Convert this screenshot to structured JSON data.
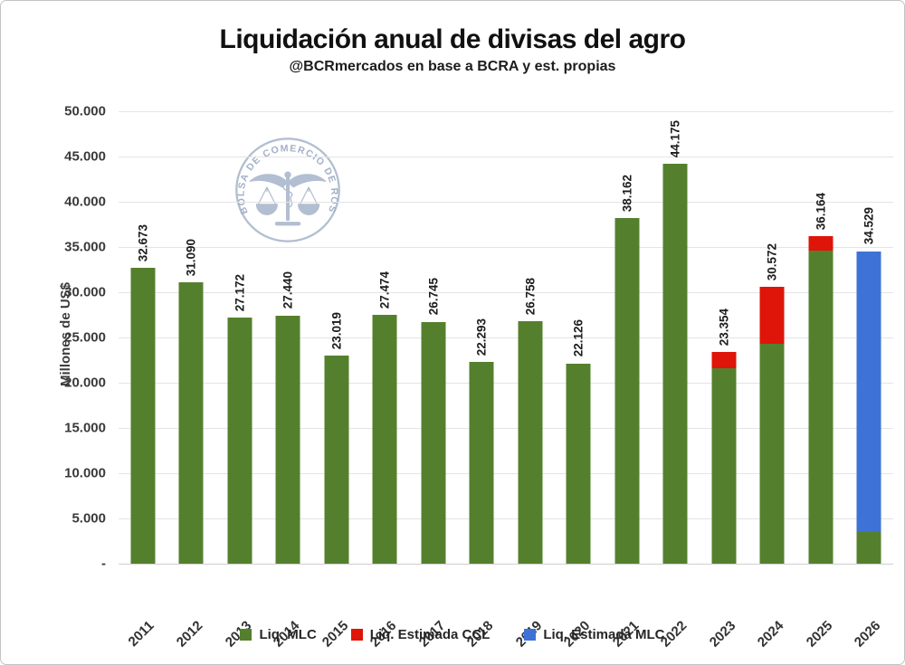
{
  "chart_data": {
    "type": "bar",
    "stacked": true,
    "title": "Liquidación anual de divisas del agro",
    "subtitle": "@BCRmercados en base a BCRA y est. propias",
    "ylabel": "Millones de US$",
    "ylim": [
      0,
      50000
    ],
    "ytick_step": 5000,
    "ytick_labels": [
      "-",
      "5.000",
      "10.000",
      "15.000",
      "20.000",
      "25.000",
      "30.000",
      "35.000",
      "40.000",
      "45.000",
      "50.000"
    ],
    "grid": "horizontal",
    "legend_position": "bottom",
    "categories": [
      "2011",
      "2012",
      "2013",
      "2014",
      "2015",
      "2016",
      "2017",
      "2018",
      "2019",
      "2020",
      "2021",
      "2022",
      "2023",
      "2024",
      "2025",
      "2026"
    ],
    "series": [
      {
        "name": "Liq. MLC",
        "color": "#54802E",
        "values": [
          32673,
          31090,
          27172,
          27440,
          23019,
          27474,
          26745,
          22293,
          26758,
          22126,
          38162,
          44175,
          21600,
          24300,
          34600,
          3500
        ]
      },
      {
        "name": "Liq. Estimada CCL",
        "color": "#DE1508",
        "values": [
          0,
          0,
          0,
          0,
          0,
          0,
          0,
          0,
          0,
          0,
          0,
          0,
          1754,
          6272,
          1564,
          0
        ]
      },
      {
        "name": "Liq. Estimada MLC",
        "color": "#3E72D6",
        "values": [
          0,
          0,
          0,
          0,
          0,
          0,
          0,
          0,
          0,
          0,
          0,
          0,
          0,
          0,
          0,
          31029
        ]
      }
    ],
    "total_labels": [
      "32.673",
      "31.090",
      "27.172",
      "27.440",
      "23.019",
      "27.474",
      "26.745",
      "22.293",
      "26.758",
      "22.126",
      "38.162",
      "44.175",
      "23.354",
      "30.572",
      "36.164",
      "34.529"
    ],
    "legend": [
      {
        "label": "Liq. MLC",
        "color": "#54802E"
      },
      {
        "label": "Liq. Estimada CCL",
        "color": "#DE1508"
      },
      {
        "label": "Liq. Estimada MLC",
        "color": "#3E72D6"
      }
    ]
  },
  "watermark": {
    "text": "BOLSA DE COMERCIO DE ROSARIO"
  }
}
